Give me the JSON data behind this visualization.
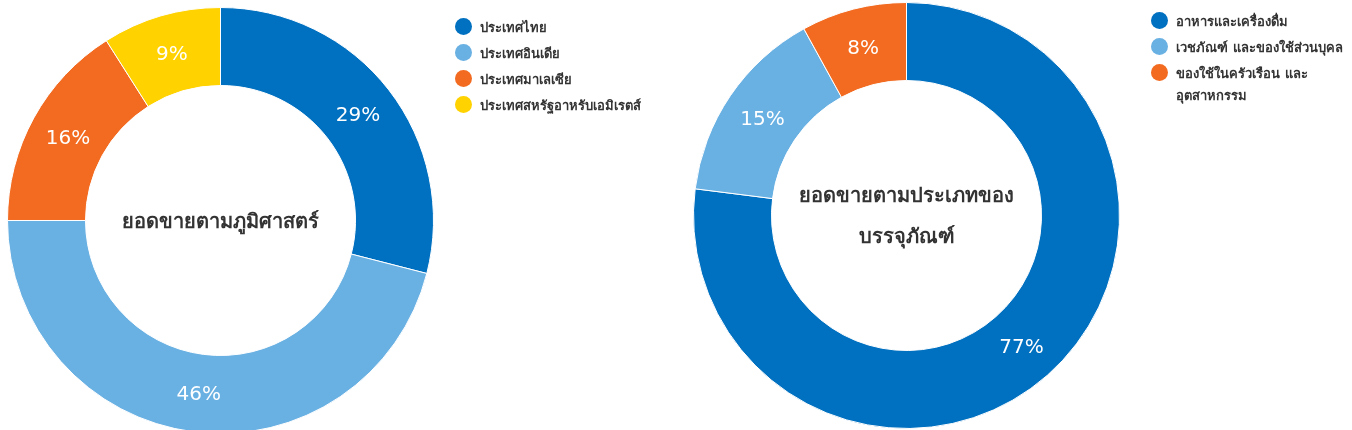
{
  "chart_data": [
    {
      "type": "donut",
      "title": "ยอดขายตามภูมิศาสตร์",
      "categories": [
        "ประเทศไทย",
        "ประเทศอินเดีย",
        "ประเทศมาเลเซีย",
        "ประเทศสหรัฐอาหรับเอมิเรตส์"
      ],
      "values": [
        29,
        46,
        16,
        9
      ],
      "value_labels": [
        "29%",
        "46%",
        "16%",
        "9%"
      ],
      "colors": [
        "#0070c0",
        "#69b0e3",
        "#f26b21",
        "#ffd200"
      ],
      "legend": "top right"
    },
    {
      "type": "donut",
      "title": "ยอดขายตามประเภทของ\nบรรจุภัณฑ์",
      "categories": [
        "อาหารและเครื่องดื่ม",
        "เวชภัณฑ์ และของใช้ส่วนบุคล",
        "ของใช้ในครัวเรือน และ อุตสาหกรรม"
      ],
      "values": [
        77,
        15,
        8
      ],
      "value_labels": [
        "77%",
        "15%",
        "8%"
      ],
      "colors": [
        "#0070c0",
        "#69b0e3",
        "#f26b21"
      ],
      "legend": "top right"
    }
  ]
}
